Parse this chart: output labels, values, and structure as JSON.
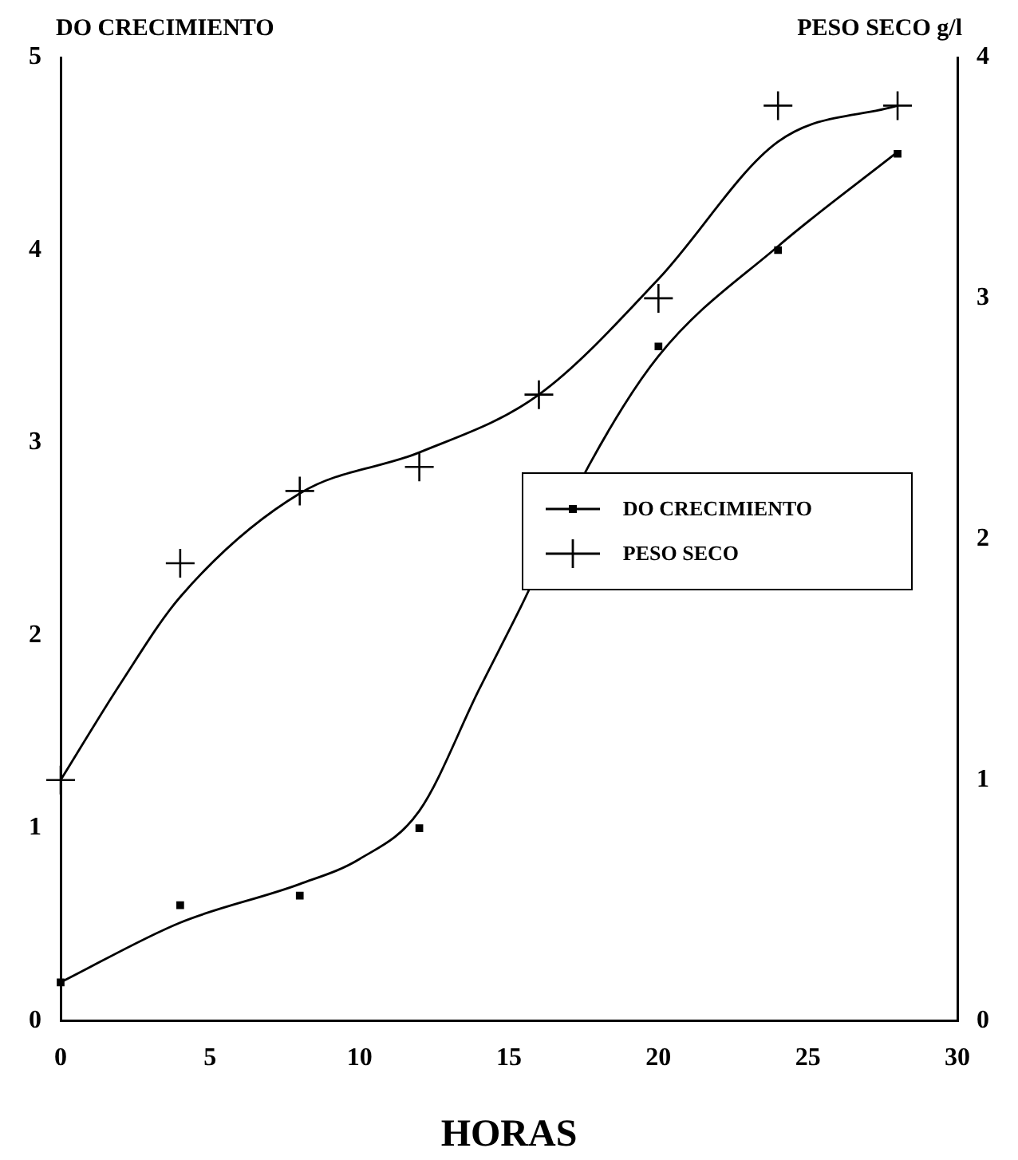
{
  "chart_data": {
    "type": "scatter",
    "xlabel": "HORAS",
    "ylabel": "DO CRECIMIENTO",
    "y2label": "PESO SECO g/l",
    "x": [
      0,
      4,
      8,
      12,
      16,
      20,
      24,
      28
    ],
    "series": [
      {
        "name": "DO CRECIMIENTO",
        "type": "scatter",
        "color": "#000000",
        "marker": "square",
        "values": [
          0.2,
          0.6,
          0.65,
          1.0,
          null,
          3.5,
          4.0,
          4.5
        ]
      },
      {
        "name": "PESO SECO",
        "type": "scatter",
        "color": "#000000",
        "marker": "cross",
        "axis": "y2",
        "values": [
          1.0,
          1.9,
          2.2,
          2.3,
          2.6,
          3.0,
          3.8,
          3.8
        ]
      },
      {
        "type": "line",
        "color": "#000000",
        "marker": "none",
        "x": [
          0,
          4,
          8,
          10,
          12,
          14,
          15.4,
          17.7,
          20,
          24,
          28
        ],
        "values": [
          0.2,
          0.51,
          0.71,
          0.84,
          1.09,
          1.72,
          2.15,
          2.89,
          3.45,
          4.02,
          4.51
        ]
      },
      {
        "type": "line",
        "color": "#000000",
        "marker": "none",
        "axis": "y2",
        "x": [
          0,
          2,
          4,
          8,
          12,
          16,
          20,
          24,
          28
        ],
        "values": [
          1.0,
          1.4,
          1.76,
          2.19,
          2.36,
          2.6,
          3.08,
          3.65,
          3.8
        ]
      }
    ],
    "xlim": [
      0,
      30
    ],
    "xticks": [
      0,
      5,
      10,
      15,
      20,
      25,
      30
    ],
    "ylim": [
      0,
      5
    ],
    "yticks": [
      0,
      1,
      2,
      3,
      4,
      5
    ],
    "y2lim": [
      0,
      4
    ],
    "y2ticks": [
      0,
      1,
      2,
      3,
      4
    ],
    "grid": false,
    "legend": "right",
    "line_style": "solid"
  }
}
